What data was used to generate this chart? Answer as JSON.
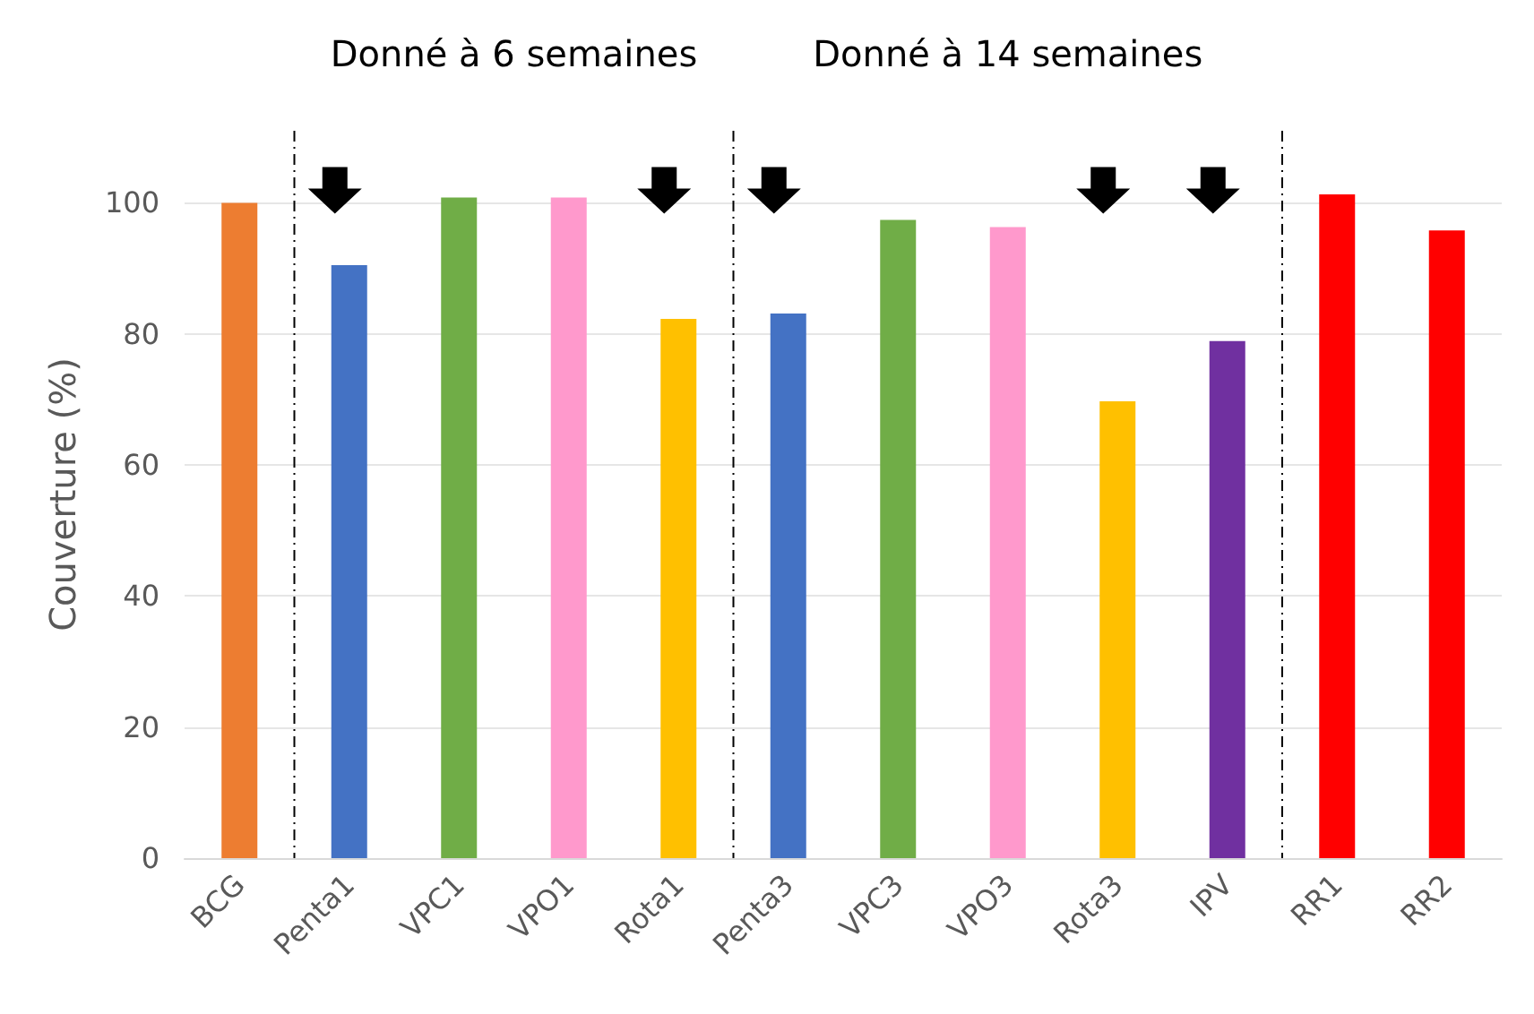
{
  "chart_data": {
    "type": "bar",
    "ylabel": "Couverture (%)",
    "categories": [
      "BCG",
      "Penta1",
      "VPC1",
      "VPO1",
      "Rota1",
      "Penta3",
      "VPC3",
      "VPO3",
      "Rota3",
      "IPV",
      "RR1",
      "RR2"
    ],
    "values": [
      100,
      90.5,
      100.8,
      100.8,
      82.3,
      83.1,
      97.4,
      96.3,
      69.7,
      78.9,
      101.3,
      95.8
    ],
    "colors": [
      "#ed7d31",
      "#4472c4",
      "#70ad47",
      "#ff99cc",
      "#ffc000",
      "#4472c4",
      "#70ad47",
      "#ff99cc",
      "#ffc000",
      "#7030a0",
      "#ff0000",
      "#ff0000"
    ],
    "ylim": [
      0,
      111
    ],
    "yticks": [
      0,
      20,
      40,
      60,
      80,
      100
    ],
    "grid": "y",
    "annotations": [
      "Donné à 6 semaines",
      "Donné à 14 semaines"
    ]
  }
}
